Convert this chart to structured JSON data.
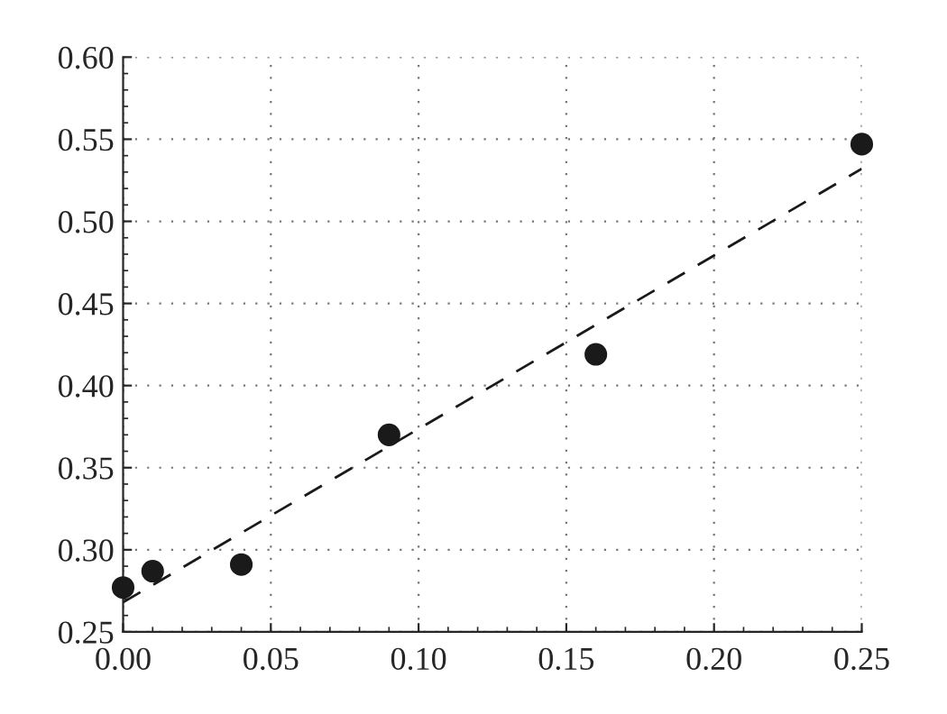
{
  "chart_data": {
    "type": "scatter",
    "series": [
      {
        "color": "#1a1a1a",
        "marker": "circle",
        "x": [
          0,
          0.01,
          0.04,
          0.09,
          0.16,
          0.25
        ],
        "values": [
          0.277,
          0.287,
          0.291,
          0.37,
          0.419,
          0.547
        ]
      },
      {
        "type": "line",
        "color": "#1a1a1a",
        "line_style": "dashed",
        "marker": "none",
        "x": [
          0,
          0.25
        ],
        "values": [
          0.268,
          0.532
        ]
      }
    ],
    "xlim": [
      0,
      0.25
    ],
    "xticks": [
      {
        "value": 0,
        "label": "0.00"
      },
      0.05,
      {
        "value": 0.1,
        "label": "0.10"
      },
      0.15,
      {
        "value": 0.2,
        "label": "0.20"
      },
      0.25
    ],
    "ylim": [
      0.25,
      0.6
    ],
    "yticks": [
      0.25,
      {
        "value": 0.3,
        "label": "0.30"
      },
      0.35,
      {
        "value": 0.4,
        "label": "0.40"
      },
      0.45,
      {
        "value": 0.5,
        "label": "0.50"
      },
      0.55,
      {
        "value": 0.6,
        "label": "0.60"
      }
    ],
    "grid": true
  }
}
